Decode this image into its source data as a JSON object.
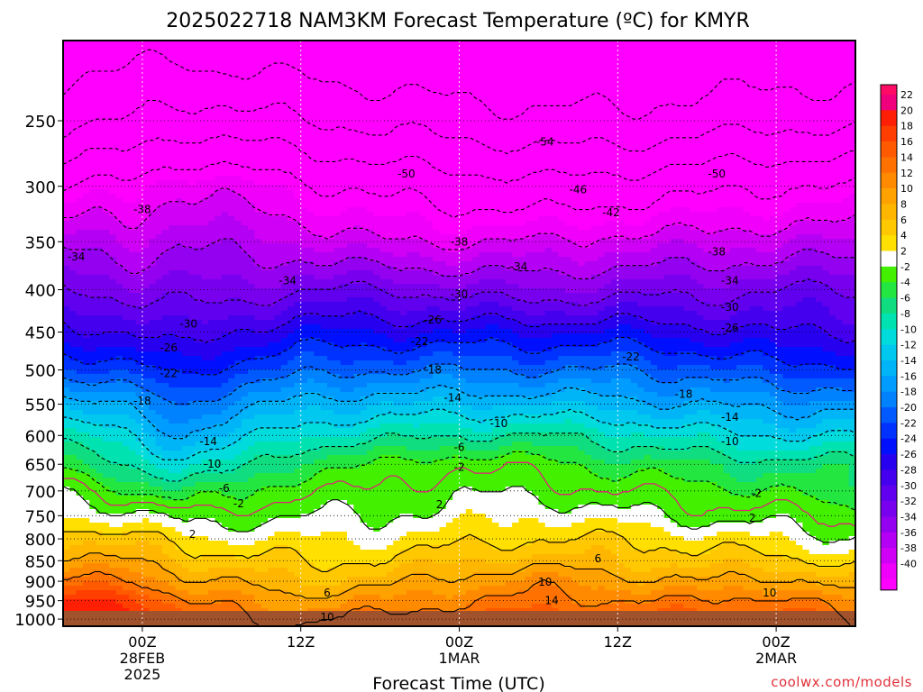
{
  "chart_data": {
    "type": "heatmap",
    "title": "2025022718 NAM3KM Forecast Temperature (ºC) for KMYR",
    "xlabel": "Forecast Time (UTC)",
    "ylabel": "",
    "watermark": "coolwx.com/models",
    "y_axis": {
      "scale": "log-pressure",
      "inverted": true,
      "ticks": [
        250,
        300,
        350,
        400,
        450,
        500,
        550,
        600,
        650,
        700,
        750,
        800,
        850,
        900,
        950,
        1000
      ],
      "tick_labels": [
        "250",
        "300",
        "350",
        "400",
        "450",
        "500",
        "550",
        "600",
        "650",
        "700",
        "750",
        "800",
        "850",
        "900",
        "950",
        "1000"
      ],
      "top": 200,
      "bottom": 1020
    },
    "x_axis": {
      "range_hours_from_start": [
        0,
        60
      ],
      "ticks": [
        {
          "hour": 6,
          "lines": [
            "00Z",
            "28FEB",
            "2025"
          ]
        },
        {
          "hour": 18,
          "lines": [
            "12Z"
          ]
        },
        {
          "hour": 30,
          "lines": [
            "00Z",
            "1MAR"
          ]
        },
        {
          "hour": 42,
          "lines": [
            "12Z"
          ]
        },
        {
          "hour": 54,
          "lines": [
            "00Z",
            "2MAR"
          ]
        }
      ]
    },
    "grid": true,
    "colorbar": {
      "position": "right",
      "labels": [
        "22",
        "20",
        "18",
        "16",
        "14",
        "12",
        "10",
        "8",
        "6",
        "4",
        "2",
        "-2",
        "-4",
        "-6",
        "-8",
        "-10",
        "-12",
        "-14",
        "-16",
        "-18",
        "-20",
        "-22",
        "-24",
        "-26",
        "-28",
        "-30",
        "-32",
        "-34",
        "-36",
        "-38",
        "-40"
      ],
      "colors": [
        "#f0007c",
        "#fe1f05",
        "#ff3e00",
        "#ff5a00",
        "#ff7100",
        "#ff8a00",
        "#ffa200",
        "#ffb600",
        "#ffc800",
        "#ffe000",
        "#ffffff",
        "#43f000",
        "#24e640",
        "#10dc80",
        "#00e2b0",
        "#00dcdc",
        "#00c8ee",
        "#00b4f8",
        "#009cff",
        "#0082ff",
        "#005aff",
        "#0032ff",
        "#0010ff",
        "#2800f0",
        "#4400ee",
        "#6000ee",
        "#7800ef",
        "#9400f0",
        "#b400f4",
        "#d000f6",
        "#f000fa"
      ],
      "above_top_color": "#ff0a64",
      "below_bottom_color": "#ff00ff"
    },
    "isotherm_levels": [
      14,
      10,
      6,
      2,
      0,
      -2,
      -6,
      -10,
      -14,
      -18,
      -22,
      -26,
      -30,
      -34,
      -38,
      -42,
      -46,
      -50,
      -54
    ],
    "contour_labels": [
      {
        "text": "-54",
        "hour": 36.5,
        "p": 265
      },
      {
        "text": "-50",
        "hour": 26,
        "p": 290
      },
      {
        "text": "-50",
        "hour": 49.5,
        "p": 290
      },
      {
        "text": "-46",
        "hour": 39,
        "p": 303
      },
      {
        "text": "-42",
        "hour": 41.5,
        "p": 323
      },
      {
        "text": "-38",
        "hour": 6,
        "p": 320
      },
      {
        "text": "-38",
        "hour": 30,
        "p": 350
      },
      {
        "text": "-38",
        "hour": 49.5,
        "p": 360
      },
      {
        "text": "-34",
        "hour": 1,
        "p": 365
      },
      {
        "text": "-34",
        "hour": 17,
        "p": 390
      },
      {
        "text": "-34",
        "hour": 34.5,
        "p": 375
      },
      {
        "text": "-34",
        "hour": 50.5,
        "p": 390
      },
      {
        "text": "-30",
        "hour": 30,
        "p": 405
      },
      {
        "text": "-30",
        "hour": 50.5,
        "p": 420
      },
      {
        "text": "-30",
        "hour": 9.5,
        "p": 440
      },
      {
        "text": "-26",
        "hour": 28,
        "p": 435
      },
      {
        "text": "-26",
        "hour": 50.5,
        "p": 445
      },
      {
        "text": "-26",
        "hour": 8,
        "p": 470
      },
      {
        "text": "-22",
        "hour": 27,
        "p": 462
      },
      {
        "text": "-22",
        "hour": 43,
        "p": 482
      },
      {
        "text": "-22",
        "hour": 8,
        "p": 505
      },
      {
        "text": "-18",
        "hour": 28,
        "p": 500
      },
      {
        "text": "-18",
        "hour": 47,
        "p": 535
      },
      {
        "text": "-18",
        "hour": 6,
        "p": 545
      },
      {
        "text": "-14",
        "hour": 29.5,
        "p": 540
      },
      {
        "text": "-14",
        "hour": 50.5,
        "p": 570
      },
      {
        "text": "-14",
        "hour": 11,
        "p": 610
      },
      {
        "text": "-10",
        "hour": 33,
        "p": 580
      },
      {
        "text": "-10",
        "hour": 50.5,
        "p": 610
      },
      {
        "text": "-10",
        "hour": 11.3,
        "p": 650
      },
      {
        "text": "-6",
        "hour": 30,
        "p": 620
      },
      {
        "text": "-6",
        "hour": 12.2,
        "p": 695
      },
      {
        "text": "-2",
        "hour": 30,
        "p": 655
      },
      {
        "text": "-2",
        "hour": 13.3,
        "p": 725
      },
      {
        "text": "-2",
        "hour": 52.5,
        "p": 705
      },
      {
        "text": "2",
        "hour": 28.5,
        "p": 727
      },
      {
        "text": "2",
        "hour": 9.8,
        "p": 790
      },
      {
        "text": "2",
        "hour": 52.2,
        "p": 755
      },
      {
        "text": "6",
        "hour": 40.5,
        "p": 845
      },
      {
        "text": "6",
        "hour": 20,
        "p": 930
      },
      {
        "text": "10",
        "hour": 36.5,
        "p": 902
      },
      {
        "text": "10",
        "hour": 53.5,
        "p": 930
      },
      {
        "text": "10",
        "hour": 20,
        "p": 995
      },
      {
        "text": "14",
        "hour": 37,
        "p": 950
      }
    ]
  }
}
